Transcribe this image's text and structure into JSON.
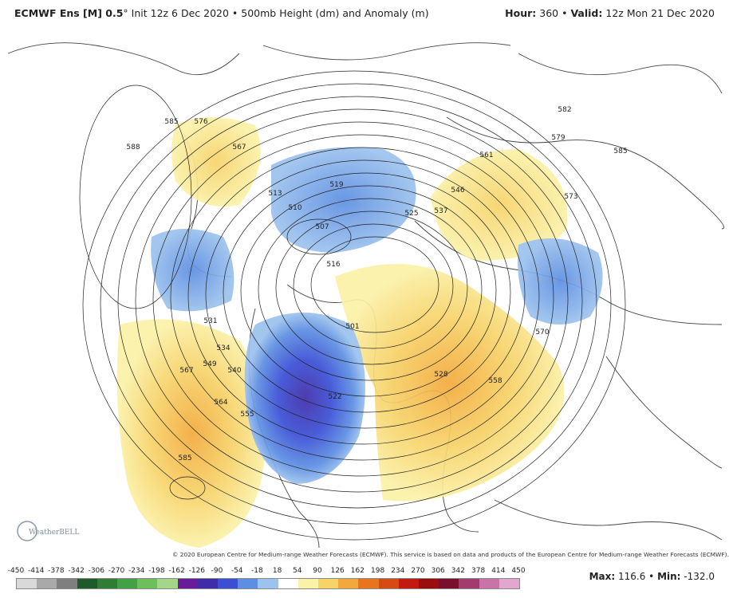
{
  "header": {
    "model": "ECMWF Ens [M] 0.5",
    "degree": "°",
    "description": "Init 12z 6 Dec 2020 • 500mb Height (dm) and Anomaly (m)",
    "hour_label": "Hour:",
    "hour_value": "360",
    "valid_label": "Valid:",
    "valid_value": "12z Mon 21 Dec 2020"
  },
  "copyright": "© 2020 European Centre for Medium-range Weather Forecasts (ECMWF). This service is based on data and products of the European Centre for Medium-range Weather Forecasts (ECMWF).",
  "logo_text": "WeatherBELL",
  "contour_labels": [
    "585",
    "588",
    "576",
    "567",
    "513",
    "510",
    "519",
    "507",
    "516",
    "525",
    "537",
    "546",
    "561",
    "579",
    "582",
    "585",
    "573",
    "570",
    "558",
    "528",
    "531",
    "534",
    "540",
    "549",
    "555",
    "564",
    "567",
    "585",
    "501",
    "522"
  ],
  "colorbar": {
    "ticks": [
      "-450",
      "-414",
      "-378",
      "-342",
      "-306",
      "-270",
      "-234",
      "-198",
      "-162",
      "-126",
      "-90",
      "-54",
      "-18",
      "18",
      "54",
      "90",
      "126",
      "162",
      "198",
      "234",
      "270",
      "306",
      "342",
      "378",
      "414",
      "450"
    ],
    "colors": [
      "#d9d9d9",
      "#a9a9a9",
      "#7f7f7f",
      "#1f5a2a",
      "#2e7d32",
      "#43a047",
      "#6cbf5a",
      "#a4d68a",
      "#6a1b9a",
      "#3f2ca8",
      "#3a4fd6",
      "#5d8ee2",
      "#9cc2ee",
      "#ffffff",
      "#fbf1a8",
      "#f7d36a",
      "#f2a93b",
      "#e8741f",
      "#d64a14",
      "#c21a0e",
      "#9c0d0d",
      "#7a0f2c",
      "#a23c6e",
      "#c874a8",
      "#e2a7cf"
    ]
  },
  "stats": {
    "max_label": "Max:",
    "max_value": "116.6",
    "separator": "•",
    "min_label": "Min:",
    "min_value": "-132.0"
  }
}
